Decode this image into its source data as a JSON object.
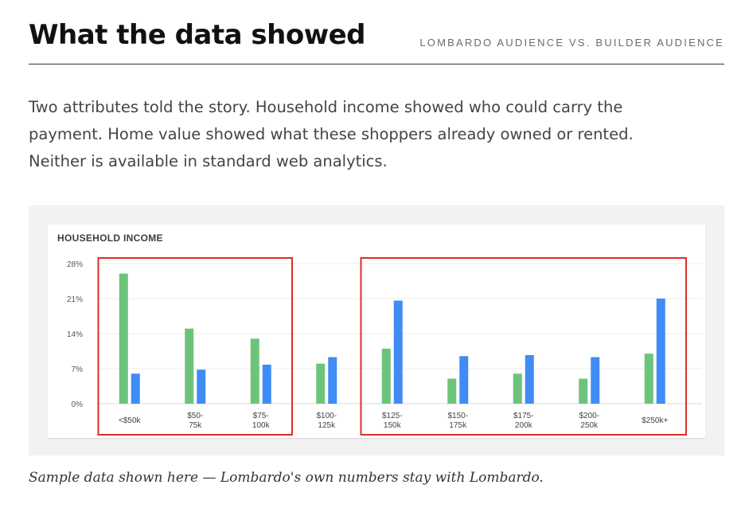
{
  "header": {
    "title": "What the data showed",
    "subtitle": "LOMBARDO AUDIENCE VS. BUILDER AUDIENCE"
  },
  "intro": {
    "lines": [
      "Two attributes told the story. Household income showed who could carry the",
      "payment. Home value showed what these shoppers already owned or rented.",
      "Neither is available in standard web analytics."
    ]
  },
  "colors": {
    "series_green": "#6cc47a",
    "series_blue": "#3f8cf5",
    "highlight_box": "#d93025",
    "panel_bg": "#f2f2f2"
  },
  "chart_data": {
    "type": "bar",
    "title": "HOUSEHOLD INCOME",
    "categories": [
      [
        "<$50k"
      ],
      [
        "$50-",
        "75k"
      ],
      [
        "$75-",
        "100k"
      ],
      [
        "$100-",
        "125k"
      ],
      [
        "$125-",
        "150k"
      ],
      [
        "$150-",
        "175k"
      ],
      [
        "$175-",
        "200k"
      ],
      [
        "$200-",
        "250k"
      ],
      [
        "$250k+"
      ]
    ],
    "series": [
      {
        "values": [
          26,
          15,
          13,
          8,
          11,
          5,
          6,
          5,
          10
        ]
      },
      {
        "values": [
          6,
          6.8,
          7.8,
          9.3,
          20.6,
          9.5,
          9.7,
          9.3,
          21
        ]
      }
    ],
    "ylim": [
      0,
      28
    ],
    "yticks": [
      0,
      7,
      14,
      21,
      28
    ],
    "ytick_labels": [
      "0%",
      "7%",
      "14%",
      "21%",
      "28%"
    ],
    "grid": true,
    "legend": "none",
    "highlight_groups": [
      [
        0,
        2
      ],
      [
        4,
        8
      ]
    ]
  },
  "caption": "Sample data shown here — Lombardo's own numbers stay with Lombardo."
}
